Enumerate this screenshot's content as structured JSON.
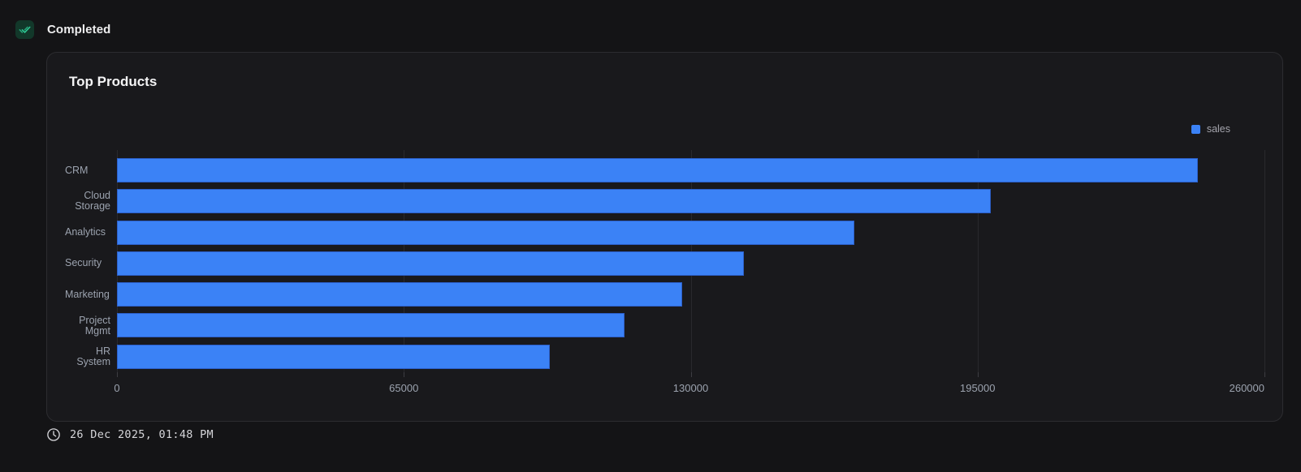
{
  "status": {
    "label": "Completed",
    "badge_bg": "#12382a",
    "badge_check_color": "#2fd49c"
  },
  "card": {
    "title": "Top Products"
  },
  "chart_data": {
    "type": "bar",
    "orientation": "horizontal",
    "title": "Top Products",
    "categories": [
      "CRM",
      "Cloud Storage",
      "Analytics",
      "Security",
      "Marketing",
      "Project Mgmt",
      "HR System"
    ],
    "series": [
      {
        "name": "sales",
        "color": "#3b82f6",
        "values": [
          245000,
          198000,
          167000,
          142000,
          128000,
          115000,
          98000
        ]
      }
    ],
    "xlim": [
      0,
      260000
    ],
    "xticks": [
      0,
      65000,
      130000,
      195000,
      260000
    ],
    "xtick_labels": [
      "0",
      "65000",
      "130000",
      "195000",
      "260000"
    ],
    "grid": true,
    "legend_position": "top-right",
    "legend_entries": [
      "sales"
    ]
  },
  "footer": {
    "timestamp": "26 Dec 2025, 01:48 PM"
  },
  "colors": {
    "page_bg": "#141416",
    "card_bg": "#19191c",
    "card_border": "#2c2c30",
    "accent_blue": "#3b82f6",
    "badge_green": "#2fd49c",
    "grid_line": "#29292d",
    "axis_text": "#9ca3af"
  }
}
